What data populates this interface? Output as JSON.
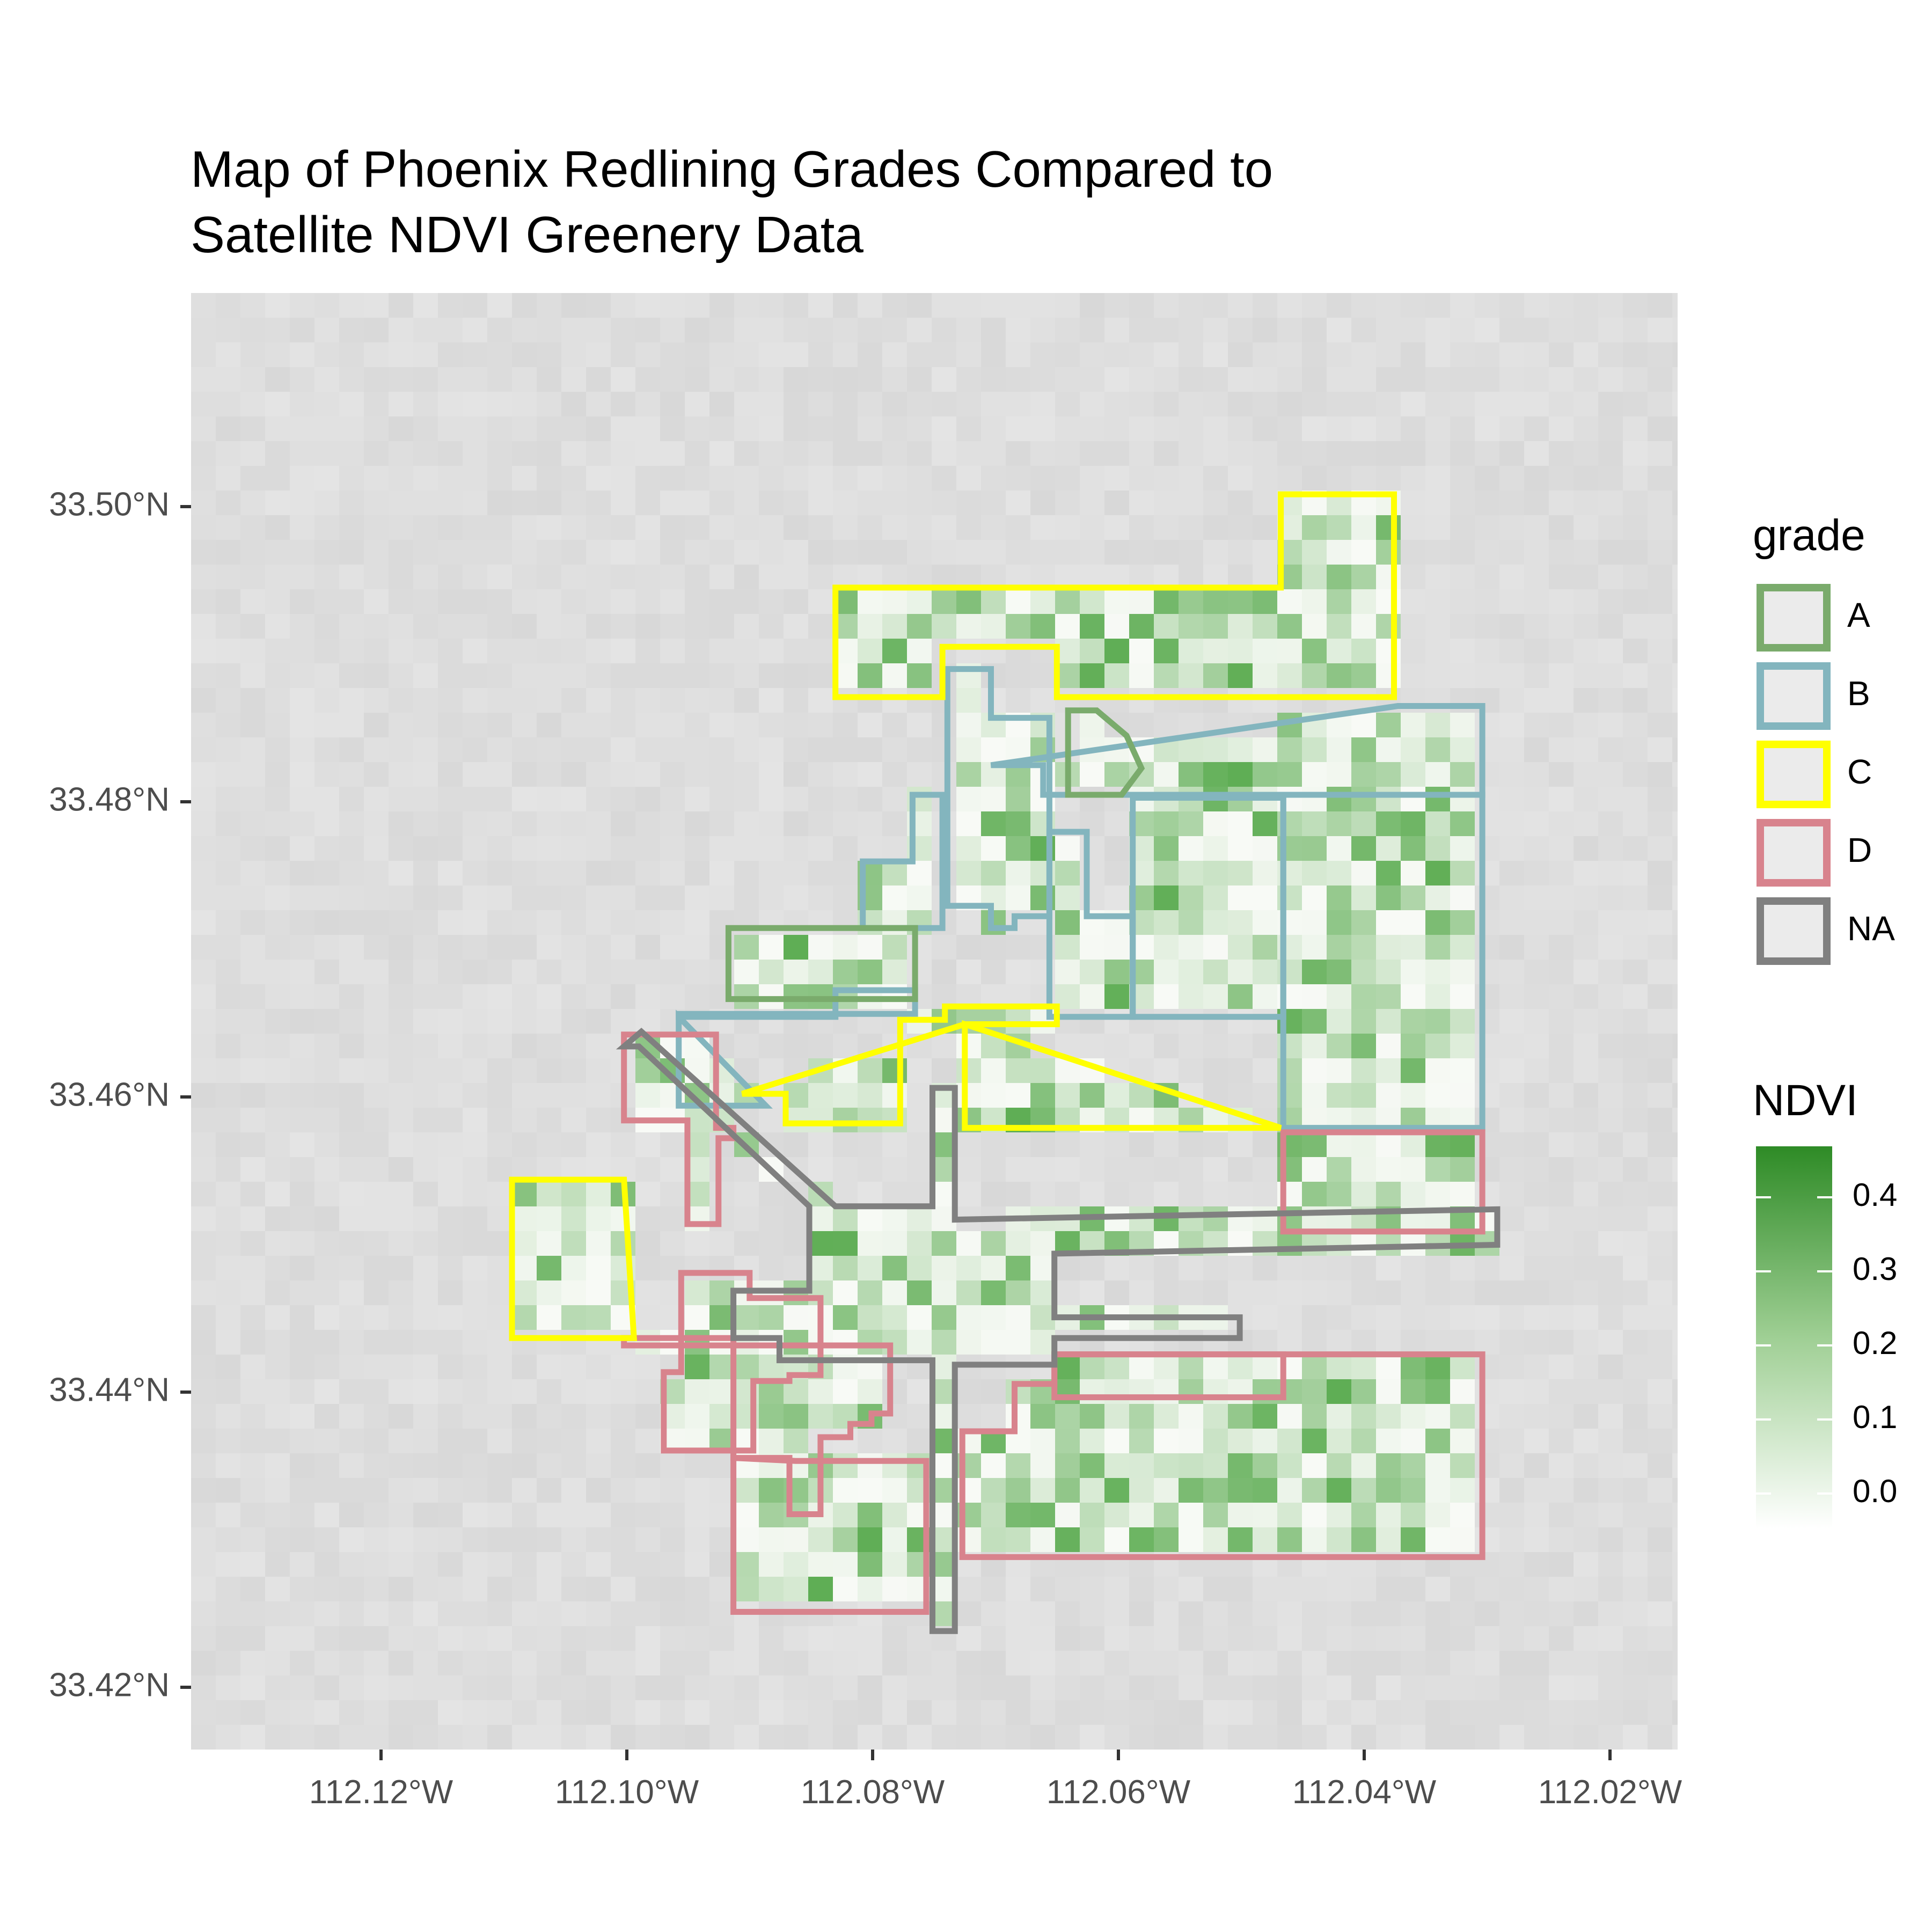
{
  "title": {
    "line1": "Map of Phoenix Redlining Grades Compared to",
    "line2": "Satellite NDVI Greenery Data"
  },
  "axes": {
    "x_ticks": [
      "112.12°W",
      "112.10°W",
      "112.08°W",
      "112.06°W",
      "112.04°W",
      "112.02°W"
    ],
    "y_ticks": [
      "33.50°N",
      "33.48°N",
      "33.46°N",
      "33.44°N",
      "33.42°N"
    ]
  },
  "legend_grade": {
    "title": "grade",
    "items": [
      {
        "label": "A",
        "color": "#7aab6c"
      },
      {
        "label": "B",
        "color": "#83b5be"
      },
      {
        "label": "C",
        "color": "#ffff00"
      },
      {
        "label": "D",
        "color": "#d8838d"
      },
      {
        "label": "NA",
        "color": "#808080"
      }
    ]
  },
  "legend_ndvi": {
    "title": "NDVI",
    "ticks": [
      "0.4",
      "0.3",
      "0.2",
      "0.1",
      "0.0"
    ],
    "colors": {
      "high": "#2e8b26",
      "low": "#ffffff"
    }
  },
  "chart_data": {
    "type": "map",
    "title": "Map of Phoenix Redlining Grades Compared to Satellite NDVI Greenery Data",
    "xlim": [
      -112.135,
      -112.0155
    ],
    "ylim": [
      33.4165,
      33.5149
    ],
    "x_ticks": [
      -112.12,
      -112.1,
      -112.08,
      -112.06,
      -112.04,
      -112.02
    ],
    "y_ticks": [
      33.5,
      33.48,
      33.46,
      33.44,
      33.42
    ],
    "fill_legend": {
      "name": "NDVI",
      "range": [
        -0.03,
        0.47
      ],
      "ticks": [
        0.0,
        0.1,
        0.2,
        0.3,
        0.4
      ]
    },
    "grade_colors": {
      "A": "#7aab6c",
      "B": "#83b5be",
      "C": "#ffff00",
      "D": "#d8838d",
      "NA": "#808080"
    },
    "polygons": [
      {
        "grade": "D",
        "coords": [
          [
            -112.1002,
            33.4648
          ],
          [
            -112.0928,
            33.4648
          ],
          [
            -112.0928,
            33.4585
          ],
          [
            -112.0914,
            33.4585
          ],
          [
            -112.0914,
            33.4578
          ],
          [
            -112.0926,
            33.4578
          ],
          [
            -112.0926,
            33.452
          ],
          [
            -112.0951,
            33.452
          ],
          [
            -112.0951,
            33.459
          ],
          [
            -112.1002,
            33.459
          ]
        ]
      },
      {
        "grade": "D",
        "coords": [
          [
            -112.0956,
            33.4487
          ],
          [
            -112.0901,
            33.4487
          ],
          [
            -112.0901,
            33.447
          ],
          [
            -112.0844,
            33.447
          ],
          [
            -112.0844,
            33.4418
          ],
          [
            -112.0869,
            33.4418
          ],
          [
            -112.0869,
            33.4414
          ],
          [
            -112.0898,
            33.4414
          ],
          [
            -112.0898,
            33.4367
          ],
          [
            -112.097,
            33.4367
          ],
          [
            -112.097,
            33.442
          ],
          [
            -112.0956,
            33.442
          ]
        ]
      },
      {
        "grade": "D",
        "coords": [
          [
            -112.1002,
            33.4443
          ],
          [
            -112.0914,
            33.4443
          ],
          [
            -112.0914,
            33.4362
          ],
          [
            -112.0869,
            33.4362
          ],
          [
            -112.0869,
            33.4324
          ],
          [
            -112.0844,
            33.4324
          ],
          [
            -112.0844,
            33.4376
          ],
          [
            -112.082,
            33.4376
          ],
          [
            -112.082,
            33.4385
          ],
          [
            -112.0803,
            33.4385
          ],
          [
            -112.0803,
            33.4392
          ],
          [
            -112.0788,
            33.4392
          ],
          [
            -112.0788,
            33.4438
          ],
          [
            -112.1002,
            33.4438
          ]
        ]
      },
      {
        "grade": "D",
        "coords": [
          [
            -112.0914,
            33.4362
          ],
          [
            -112.0914,
            33.4258
          ],
          [
            -112.0759,
            33.4258
          ],
          [
            -112.0759,
            33.436
          ],
          [
            -112.0864,
            33.436
          ]
        ]
      },
      {
        "grade": "D",
        "coords": [
          [
            -112.0472,
            33.4582
          ],
          [
            -112.0312,
            33.4582
          ],
          [
            -112.0312,
            33.4515
          ],
          [
            -112.0472,
            33.4515
          ]
        ]
      },
      {
        "grade": "D",
        "coords": [
          [
            -112.0656,
            33.4432
          ],
          [
            -112.0312,
            33.4432
          ],
          [
            -112.0312,
            33.4295
          ],
          [
            -112.073,
            33.4295
          ],
          [
            -112.073,
            33.438
          ],
          [
            -112.0688,
            33.438
          ],
          [
            -112.0688,
            33.4412
          ],
          [
            -112.0656,
            33.4412
          ]
        ]
      },
      {
        "grade": "D",
        "coords": [
          [
            -112.0656,
            33.4432
          ],
          [
            -112.0472,
            33.4432
          ],
          [
            -112.0472,
            33.4403
          ],
          [
            -112.0656,
            33.4403
          ]
        ]
      },
      {
        "grade": "A",
        "coords": [
          [
            -112.0918,
            33.472
          ],
          [
            -112.0768,
            33.472
          ],
          [
            -112.0768,
            33.4672
          ],
          [
            -112.0918,
            33.4672
          ]
        ]
      },
      {
        "grade": "A",
        "coords": [
          [
            -112.0645,
            33.4867
          ],
          [
            -112.0622,
            33.4867
          ],
          [
            -112.0598,
            33.485
          ],
          [
            -112.0586,
            33.4828
          ],
          [
            -112.0602,
            33.481
          ],
          [
            -112.0645,
            33.481
          ]
        ]
      },
      {
        "grade": "B",
        "coords": [
          [
            -112.0958,
            33.466
          ],
          [
            -112.0832,
            33.466
          ],
          [
            -112.0832,
            33.4678
          ],
          [
            -112.0768,
            33.4678
          ],
          [
            -112.0768,
            33.4662
          ],
          [
            -112.0958,
            33.4662
          ]
        ]
      },
      {
        "grade": "B",
        "coords": [
          [
            -112.0958,
            33.466
          ],
          [
            -112.0958,
            33.46
          ],
          [
            -112.0888,
            33.46
          ]
        ]
      },
      {
        "grade": "B",
        "coords": [
          [
            -112.081,
            33.472
          ],
          [
            -112.0746,
            33.472
          ],
          [
            -112.0746,
            33.481
          ],
          [
            -112.077,
            33.481
          ],
          [
            -112.077,
            33.4765
          ],
          [
            -112.081,
            33.4765
          ]
        ]
      },
      {
        "grade": "B",
        "coords": [
          [
            -112.0742,
            33.4895
          ],
          [
            -112.0742,
            33.4735
          ],
          [
            -112.0707,
            33.4735
          ],
          [
            -112.0707,
            33.472
          ],
          [
            -112.0688,
            33.472
          ],
          [
            -112.0688,
            33.4728
          ],
          [
            -112.066,
            33.4728
          ],
          [
            -112.066,
            33.4862
          ],
          [
            -112.0707,
            33.4862
          ],
          [
            -112.0707,
            33.4895
          ]
        ]
      },
      {
        "grade": "B",
        "coords": [
          [
            -112.066,
            33.4785
          ],
          [
            -112.063,
            33.4785
          ],
          [
            -112.063,
            33.4728
          ],
          [
            -112.0593,
            33.4728
          ],
          [
            -112.0593,
            33.466
          ],
          [
            -112.066,
            33.466
          ]
        ]
      },
      {
        "grade": "B",
        "coords": [
          [
            -112.0593,
            33.4808
          ],
          [
            -112.0472,
            33.4808
          ],
          [
            -112.0472,
            33.466
          ],
          [
            -112.0593,
            33.466
          ]
        ]
      },
      {
        "grade": "B",
        "coords": [
          [
            -112.0707,
            33.483
          ],
          [
            -112.0665,
            33.483
          ],
          [
            -112.0665,
            33.481
          ],
          [
            -112.0312,
            33.481
          ],
          [
            -112.0312,
            33.487
          ],
          [
            -112.038,
            33.487
          ]
        ]
      },
      {
        "grade": "B",
        "coords": [
          [
            -112.0472,
            33.481
          ],
          [
            -112.0472,
            33.4585
          ],
          [
            -112.0312,
            33.4585
          ],
          [
            -112.0312,
            33.481
          ]
        ]
      },
      {
        "grade": "C",
        "coords": [
          [
            -112.0832,
            33.495
          ],
          [
            -112.0474,
            33.495
          ],
          [
            -112.0474,
            33.5013
          ],
          [
            -112.0383,
            33.5013
          ],
          [
            -112.0383,
            33.4876
          ],
          [
            -112.0654,
            33.4876
          ],
          [
            -112.0654,
            33.491
          ],
          [
            -112.0746,
            33.491
          ],
          [
            -112.0746,
            33.4876
          ],
          [
            -112.0832,
            33.4876
          ]
        ]
      },
      {
        "grade": "C",
        "coords": [
          [
            -112.0728,
            33.4655
          ],
          [
            -112.0654,
            33.4655
          ],
          [
            -112.0654,
            33.4667
          ],
          [
            -112.0744,
            33.4667
          ],
          [
            -112.0744,
            33.4658
          ],
          [
            -112.078,
            33.4658
          ],
          [
            -112.078,
            33.4588
          ],
          [
            -112.0872,
            33.4588
          ],
          [
            -112.0872,
            33.4608
          ],
          [
            -112.0907,
            33.4608
          ]
        ]
      },
      {
        "grade": "C",
        "coords": [
          [
            -112.0728,
            33.4655
          ],
          [
            -112.0728,
            33.4585
          ],
          [
            -112.0474,
            33.4585
          ]
        ]
      },
      {
        "grade": "C",
        "coords": [
          [
            -112.1092,
            33.455
          ],
          [
            -112.1002,
            33.455
          ],
          [
            -112.0994,
            33.4443
          ],
          [
            -112.1092,
            33.4443
          ]
        ]
      },
      {
        "grade": "NA",
        "coords": [
          [
            -112.1002,
            33.464
          ],
          [
            -112.0988,
            33.465
          ],
          [
            -112.0832,
            33.4532
          ],
          [
            -112.0754,
            33.4532
          ],
          [
            -112.0754,
            33.4612
          ],
          [
            -112.0736,
            33.4612
          ],
          [
            -112.0736,
            33.4523
          ],
          [
            -112.03,
            33.453
          ],
          [
            -112.03,
            33.4506
          ],
          [
            -112.0656,
            33.45
          ],
          [
            -112.0656,
            33.4457
          ],
          [
            -112.0507,
            33.4457
          ],
          [
            -112.0507,
            33.4443
          ],
          [
            -112.0656,
            33.4443
          ],
          [
            -112.0656,
            33.4425
          ],
          [
            -112.0736,
            33.4425
          ],
          [
            -112.0736,
            33.4245
          ],
          [
            -112.0754,
            33.4245
          ],
          [
            -112.0754,
            33.4428
          ],
          [
            -112.0877,
            33.4428
          ],
          [
            -112.0877,
            33.4443
          ],
          [
            -112.0914,
            33.4443
          ],
          [
            -112.0914,
            33.4475
          ],
          [
            -112.0853,
            33.4475
          ],
          [
            -112.0853,
            33.4532
          ],
          [
            -112.099,
            33.464
          ]
        ]
      }
    ]
  }
}
